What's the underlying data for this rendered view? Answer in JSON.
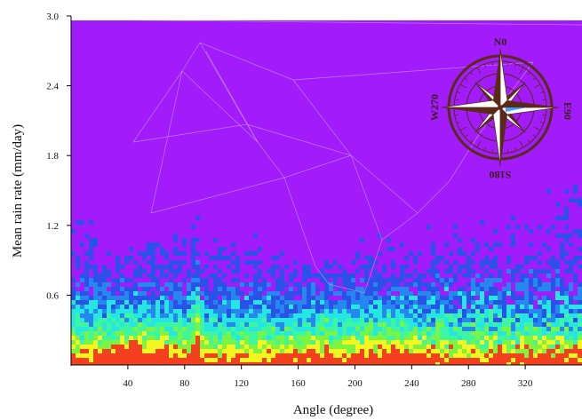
{
  "chart_data": {
    "type": "heatmap",
    "title": "",
    "xlabel": "Angle (degree)",
    "ylabel": "Mean rain rate (mm/day)",
    "xlim": [
      0,
      360
    ],
    "ylim": [
      0,
      3.0
    ],
    "x_ticks": [
      40,
      80,
      120,
      160,
      200,
      240,
      280,
      320
    ],
    "y_ticks": [
      0.6,
      1.2,
      1.8,
      2.4,
      3.0
    ],
    "x_tick_labels": [
      "40",
      "80",
      "120",
      "160",
      "200",
      "240",
      "280",
      "320"
    ],
    "y_tick_labels": [
      "0.6",
      "1.2",
      "1.8",
      "2.4",
      "3.0"
    ],
    "levels": [
      {
        "color": "#a21bfa"
      },
      {
        "color": "#2a52e8"
      },
      {
        "color": "#2688ee"
      },
      {
        "color": "#25e6e0"
      },
      {
        "color": "#3ef5a0"
      },
      {
        "color": "#7cf542"
      },
      {
        "color": "#f5f520"
      },
      {
        "color": "#f54020"
      }
    ],
    "compass": {
      "labels": {
        "north": "N0",
        "east": "E90",
        "south": "S180",
        "west": "W270"
      },
      "colors": {
        "dark": "#5a2a18",
        "light": "#ffffff",
        "accent": "#2b8cff"
      }
    }
  }
}
